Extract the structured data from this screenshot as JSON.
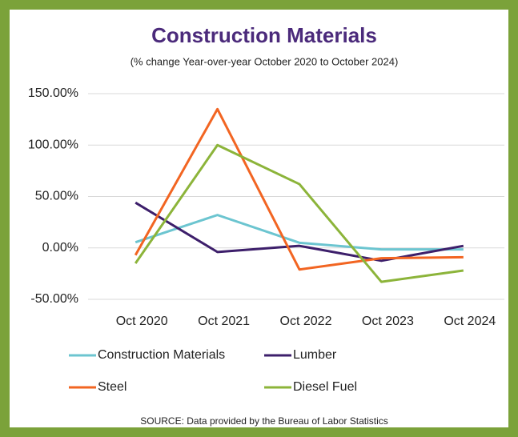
{
  "chart_data": {
    "type": "line",
    "title": "Construction Materials",
    "subtitle": "(% change Year-over-year October 2020 to October 2024)",
    "source": "SOURCE:  Data provided by the  Bureau of Labor Statistics",
    "categories": [
      "Oct 2020",
      "Oct 2021",
      "Oct 2022",
      "Oct 2023",
      "Oct 2024"
    ],
    "series": [
      {
        "name": "Construction Materials",
        "color": "#6cc5d0",
        "values": [
          5.5,
          32,
          5,
          -1.5,
          -1.5
        ]
      },
      {
        "name": "Lumber",
        "color": "#3d1f6b",
        "values": [
          44,
          -4,
          2,
          -12.5,
          2
        ]
      },
      {
        "name": "Steel",
        "color": "#f26522",
        "values": [
          -7,
          135,
          -21,
          -10,
          -9
        ]
      },
      {
        "name": "Diesel Fuel",
        "color": "#8cb43a",
        "values": [
          -15,
          100,
          62,
          -33,
          -22
        ]
      }
    ],
    "ylim": [
      -50,
      150
    ],
    "yticks": [
      {
        "value": -50,
        "label": "-50.00%"
      },
      {
        "value": 0,
        "label": "0.00%"
      },
      {
        "value": 50,
        "label": "50.00%"
      },
      {
        "value": 100,
        "label": "100.00%"
      },
      {
        "value": 150,
        "label": "150.00%"
      }
    ],
    "grid": true
  }
}
